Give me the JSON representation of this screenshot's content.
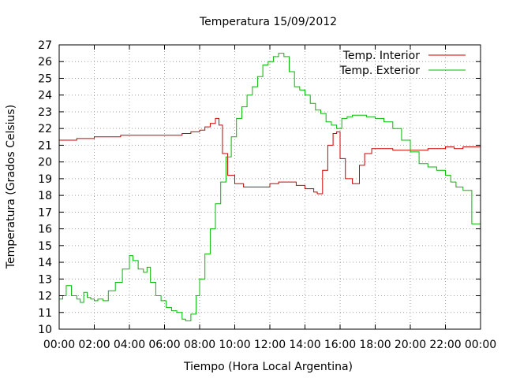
{
  "chart_data": {
    "type": "line",
    "title": "Temperatura 15/09/2012",
    "xlabel": "Tiempo (Hora Local Argentina)",
    "ylabel": "Temperatura (Grados Celsius)",
    "xlim": [
      0,
      24
    ],
    "ylim": [
      10,
      27
    ],
    "x_unit": "hours",
    "grid": true,
    "legend_position": "top-right",
    "x_ticks": [
      {
        "value": 0,
        "label": "00:00"
      },
      {
        "value": 2,
        "label": "02:00"
      },
      {
        "value": 4,
        "label": "04:00"
      },
      {
        "value": 6,
        "label": "06:00"
      },
      {
        "value": 8,
        "label": "08:00"
      },
      {
        "value": 10,
        "label": "10:00"
      },
      {
        "value": 12,
        "label": "12:00"
      },
      {
        "value": 14,
        "label": "14:00"
      },
      {
        "value": 16,
        "label": "16:00"
      },
      {
        "value": 18,
        "label": "18:00"
      },
      {
        "value": 20,
        "label": "20:00"
      },
      {
        "value": 22,
        "label": "22:00"
      },
      {
        "value": 24,
        "label": "00:00"
      }
    ],
    "y_ticks": [
      {
        "value": 10,
        "label": "10"
      },
      {
        "value": 11,
        "label": "11"
      },
      {
        "value": 12,
        "label": "12"
      },
      {
        "value": 13,
        "label": "13"
      },
      {
        "value": 14,
        "label": "14"
      },
      {
        "value": 15,
        "label": "15"
      },
      {
        "value": 16,
        "label": "16"
      },
      {
        "value": 17,
        "label": "17"
      },
      {
        "value": 18,
        "label": "18"
      },
      {
        "value": 19,
        "label": "19"
      },
      {
        "value": 20,
        "label": "20"
      },
      {
        "value": 21,
        "label": "21"
      },
      {
        "value": 22,
        "label": "22"
      },
      {
        "value": 23,
        "label": "23"
      },
      {
        "value": 24,
        "label": "24"
      },
      {
        "value": 25,
        "label": "25"
      },
      {
        "value": 26,
        "label": "26"
      },
      {
        "value": 27,
        "label": "27"
      }
    ],
    "series": [
      {
        "name": "Temp. Interior",
        "color": "#cc0000",
        "x": [
          0,
          0.5,
          1,
          1.5,
          2,
          2.5,
          3,
          3.5,
          4,
          4.5,
          5,
          5.5,
          6,
          6.5,
          7,
          7.5,
          8,
          8.3,
          8.6,
          8.9,
          9.1,
          9.3,
          9.6,
          10,
          10.5,
          11,
          11.5,
          12,
          12.5,
          13,
          13.5,
          14,
          14.5,
          14.7,
          15,
          15.3,
          15.6,
          15.8,
          16,
          16.3,
          16.7,
          16.9,
          17.1,
          17.4,
          17.8,
          18.5,
          19,
          20,
          21,
          22,
          22.5,
          23,
          24
        ],
        "y": [
          21.3,
          21.3,
          21.4,
          21.4,
          21.5,
          21.5,
          21.5,
          21.6,
          21.6,
          21.6,
          21.6,
          21.6,
          21.6,
          21.6,
          21.7,
          21.8,
          21.9,
          22.1,
          22.3,
          22.6,
          22.2,
          20.5,
          19.2,
          18.7,
          18.5,
          18.5,
          18.5,
          18.7,
          18.8,
          18.8,
          18.6,
          18.4,
          18.2,
          18.1,
          19.5,
          21.0,
          21.7,
          21.8,
          20.2,
          19.0,
          18.7,
          18.7,
          19.8,
          20.5,
          20.8,
          20.8,
          20.7,
          20.7,
          20.8,
          20.9,
          20.8,
          20.9,
          20.9
        ]
      },
      {
        "name": "Temp. Exterior",
        "color": "#00bb00",
        "x": [
          0,
          0.2,
          0.4,
          0.7,
          1,
          1.2,
          1.4,
          1.6,
          1.8,
          2,
          2.2,
          2.5,
          2.8,
          3.2,
          3.6,
          4,
          4.2,
          4.5,
          4.8,
          5,
          5.2,
          5.5,
          5.8,
          6.1,
          6.4,
          6.7,
          7,
          7.2,
          7.5,
          7.8,
          8,
          8.3,
          8.6,
          8.9,
          9.2,
          9.5,
          9.8,
          10.1,
          10.4,
          10.7,
          11,
          11.3,
          11.6,
          11.9,
          12.2,
          12.5,
          12.6,
          12.8,
          13.1,
          13.4,
          13.7,
          14,
          14.3,
          14.6,
          14.9,
          15.2,
          15.5,
          15.8,
          16.1,
          16.4,
          16.7,
          17,
          17.5,
          18,
          18.5,
          19,
          19.5,
          20,
          20.5,
          21,
          21.5,
          22,
          22.3,
          22.6,
          23,
          23.5,
          24
        ],
        "y": [
          11.8,
          12.0,
          12.6,
          12.0,
          11.8,
          11.6,
          12.2,
          11.9,
          11.8,
          11.7,
          11.8,
          11.7,
          12.3,
          12.8,
          13.6,
          14.4,
          14.1,
          13.6,
          13.4,
          13.7,
          12.8,
          12.0,
          11.7,
          11.3,
          11.1,
          11.0,
          10.6,
          10.5,
          10.9,
          12.0,
          13.0,
          14.5,
          16.0,
          17.5,
          18.8,
          20.3,
          21.5,
          22.6,
          23.3,
          24.0,
          24.5,
          25.1,
          25.8,
          26.0,
          26.3,
          26.5,
          26.5,
          26.3,
          25.4,
          24.5,
          24.3,
          24.0,
          23.5,
          23.1,
          22.9,
          22.4,
          22.2,
          22.0,
          22.6,
          22.7,
          22.8,
          22.8,
          22.7,
          22.6,
          22.4,
          22.0,
          21.3,
          20.6,
          19.9,
          19.7,
          19.5,
          19.2,
          18.8,
          18.5,
          18.3,
          16.3,
          16.0
        ]
      }
    ]
  }
}
